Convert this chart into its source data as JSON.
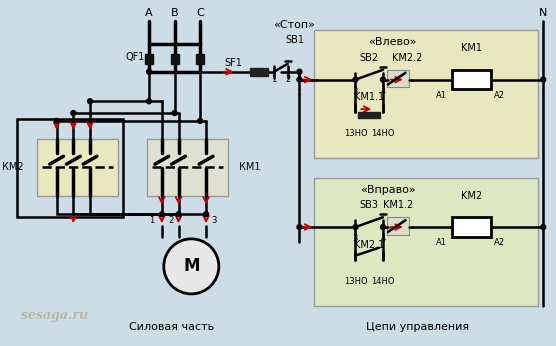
{
  "bg_color": "#ccdde8",
  "box_color_vlevo": "#e8e8c0",
  "box_color_vpravo": "#dde8c0",
  "box_edge": "#999999",
  "line_color": "#000000",
  "arrow_color": "#cc0000",
  "label_силовая": "Силовая часть",
  "label_цепи": "Цепи управления",
  "label_стоп": "«Стоп»",
  "label_влево": "«Влево»",
  "label_вправо": "«Вправо»",
  "watermark": "sesaga.ru",
  "watermark_color": "#b8b8a0"
}
